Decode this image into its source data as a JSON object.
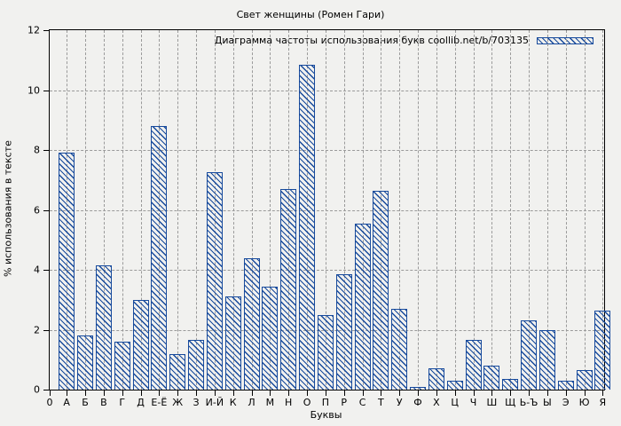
{
  "chart_data": {
    "type": "bar",
    "title": "Свет женщины (Ромен Гари)",
    "legend_label": "Диаграмма частоты использования букв coollib.net/b/703135",
    "legend_position": "top-right-inside",
    "xlabel": "Буквы",
    "ylabel": "% использования в тексте",
    "origin_label": "0",
    "categories": [
      "А",
      "Б",
      "В",
      "Г",
      "Д",
      "Е-Ё",
      "Ж",
      "З",
      "И-Й",
      "К",
      "Л",
      "М",
      "Н",
      "О",
      "П",
      "Р",
      "С",
      "Т",
      "У",
      "Ф",
      "Х",
      "Ц",
      "Ч",
      "Ш",
      "Щ",
      "Ь-Ъ",
      "Ы",
      "Э",
      "Ю",
      "Я"
    ],
    "values": [
      7.9,
      1.8,
      4.15,
      1.6,
      3.0,
      8.8,
      1.2,
      1.65,
      7.25,
      3.1,
      4.4,
      3.45,
      6.7,
      10.85,
      2.5,
      3.85,
      5.55,
      6.65,
      2.7,
      0.1,
      0.7,
      0.3,
      1.65,
      0.8,
      0.35,
      2.3,
      2.0,
      0.3,
      0.65,
      2.65
    ],
    "ylim": [
      0,
      12
    ],
    "yticks": [
      0,
      2,
      4,
      6,
      8,
      10,
      12
    ],
    "grid": "dashed-both-axes",
    "bar_style": "diagonal-hatch",
    "colors": {
      "bar": "#174a9c",
      "grid": "#9a9a9a",
      "frame": "#000000",
      "background": "#f1f1ef"
    }
  }
}
